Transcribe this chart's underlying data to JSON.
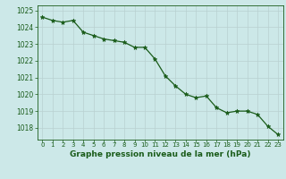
{
  "x": [
    0,
    1,
    2,
    3,
    4,
    5,
    6,
    7,
    8,
    9,
    10,
    11,
    12,
    13,
    14,
    15,
    16,
    17,
    18,
    19,
    20,
    21,
    22,
    23
  ],
  "y": [
    1024.6,
    1024.4,
    1024.3,
    1024.4,
    1023.7,
    1023.5,
    1023.3,
    1023.2,
    1023.1,
    1022.8,
    1022.8,
    1022.1,
    1021.1,
    1020.5,
    1020.0,
    1019.8,
    1019.9,
    1019.2,
    1018.9,
    1019.0,
    1019.0,
    1018.8,
    1018.1,
    1017.6
  ],
  "line_color": "#1a5c1a",
  "marker": "*",
  "marker_size": 3.5,
  "background_color": "#cce8e8",
  "grid_color": "#b8d0d0",
  "xlabel": "Graphe pression niveau de la mer (hPa)",
  "xlabel_color": "#1a5c1a",
  "tick_color": "#1a5c1a",
  "ylim_min": 1017.3,
  "ylim_max": 1025.3,
  "yticks": [
    1018,
    1019,
    1020,
    1021,
    1022,
    1023,
    1024,
    1025
  ],
  "xtick_labels": [
    "0",
    "1",
    "2",
    "3",
    "4",
    "5",
    "6",
    "7",
    "8",
    "9",
    "10",
    "11",
    "12",
    "13",
    "14",
    "15",
    "16",
    "17",
    "18",
    "19",
    "20",
    "21",
    "22",
    "23"
  ]
}
